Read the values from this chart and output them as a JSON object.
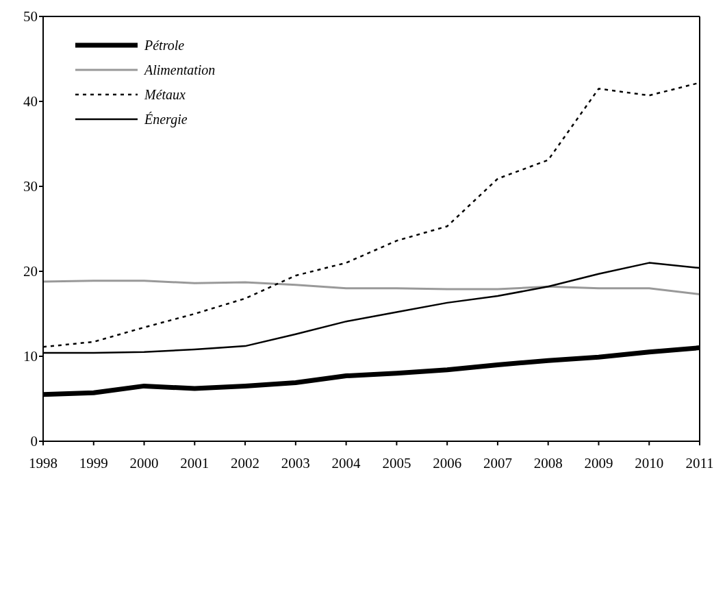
{
  "chart_data": {
    "type": "line",
    "categories": [
      "1998",
      "1999",
      "2000",
      "2001",
      "2002",
      "2003",
      "2004",
      "2005",
      "2006",
      "2007",
      "2008",
      "2009",
      "2010",
      "2011"
    ],
    "series": [
      {
        "name": "Pétrole",
        "color": "#000000",
        "line_style": "solid",
        "values": [
          5.5,
          5.7,
          6.5,
          6.2,
          6.5,
          6.9,
          7.7,
          8.0,
          8.4,
          9.0,
          9.5,
          9.9,
          10.5,
          11.0
        ]
      },
      {
        "name": "Alimentation",
        "color": "#999999",
        "line_style": "solid",
        "values": [
          18.8,
          18.9,
          18.9,
          18.6,
          18.7,
          18.4,
          18.0,
          18.0,
          17.9,
          17.9,
          18.2,
          18.0,
          18.0,
          17.3
        ]
      },
      {
        "name": "Métaux",
        "color": "#000000",
        "line_style": "dotted",
        "values": [
          11.1,
          11.7,
          13.4,
          15.0,
          16.8,
          19.5,
          21.0,
          23.6,
          25.3,
          30.9,
          33.1,
          41.5,
          40.7,
          42.2
        ]
      },
      {
        "name": "Énergie",
        "color": "#000000",
        "line_style": "solid",
        "values": [
          10.4,
          10.4,
          10.5,
          10.8,
          11.2,
          12.6,
          14.1,
          15.2,
          16.3,
          17.1,
          18.2,
          19.7,
          21.0,
          20.4
        ]
      }
    ],
    "ylim": [
      0,
      50
    ],
    "yticks": [
      0,
      10,
      20,
      30,
      40,
      50
    ],
    "grid": false,
    "legend": "top left",
    "marker": "none"
  }
}
